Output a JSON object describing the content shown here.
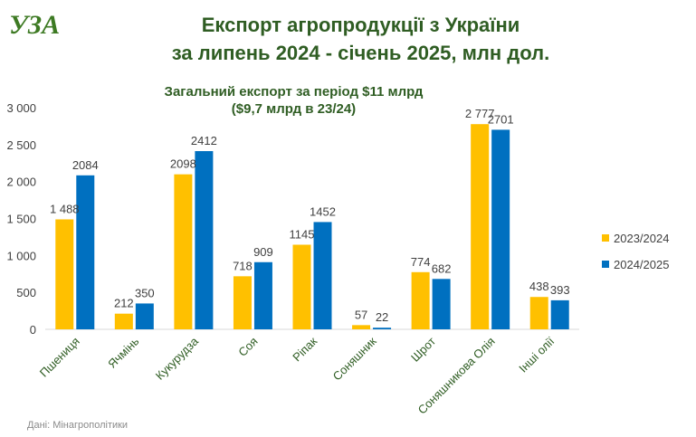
{
  "logo": {
    "text": "УЗА"
  },
  "title": {
    "line1": "Експорт агропродукції з України",
    "line2": "за липень 2024 -  січень 2025,  млн дол."
  },
  "subtitle": {
    "line1": "Загальний експорт за період $11 млрд",
    "line2": "($9,7 млрд в 23/24)"
  },
  "source": "Дані: Мінагрополітики",
  "colors": {
    "series1": "#ffc000",
    "series2": "#0070c0",
    "category_text": "#2f5d23"
  },
  "chart_data": {
    "type": "bar",
    "title": "Експорт агропродукції з України за липень 2024 -  січень 2025,  млн дол.",
    "categories": [
      "Пшениця",
      "Ячмінь",
      "Кукурудза",
      "Соя",
      "Ріпак",
      "Соняшник",
      "Шрот",
      "Соняшникова Олія",
      "Інші олії"
    ],
    "series": [
      {
        "name": "2023/2024",
        "color": "#ffc000",
        "values": [
          1488,
          212,
          2098,
          718,
          1145,
          57,
          774,
          2777,
          438
        ],
        "labels": [
          "1 488",
          "212",
          "2098",
          "718",
          "1145",
          "57",
          "774",
          "2 777",
          "438"
        ]
      },
      {
        "name": "2024/2025",
        "color": "#0070c0",
        "values": [
          2084,
          350,
          2412,
          909,
          1452,
          22,
          682,
          2701,
          393
        ],
        "labels": [
          "2084",
          "350",
          "2412",
          "909",
          "1452",
          "22",
          "682",
          "2701",
          "393"
        ]
      }
    ],
    "yticks": [
      0,
      500,
      1000,
      1500,
      2000,
      2500,
      3000
    ],
    "ytick_labels": [
      "0",
      "500",
      "1 000",
      "1 500",
      "2 000",
      "2 500",
      "3 000"
    ],
    "ylim": [
      0,
      3000
    ],
    "grid": false,
    "legend_position": "right"
  }
}
